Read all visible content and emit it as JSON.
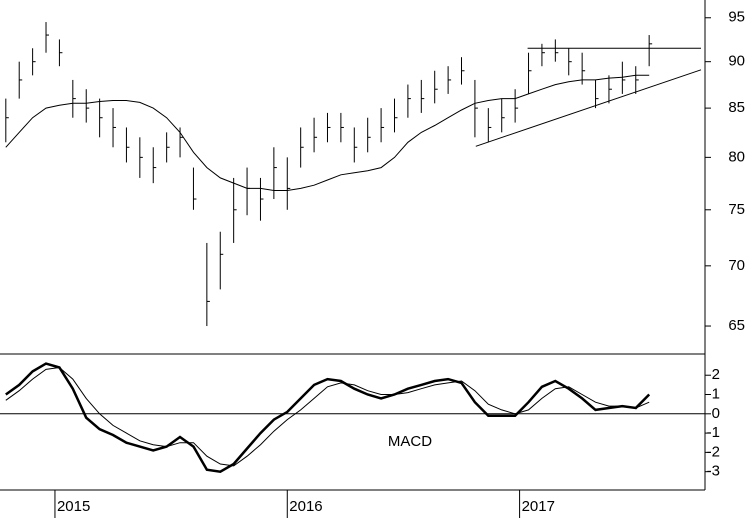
{
  "chart_data": [
    {
      "type": "ohlc",
      "log_scale": true,
      "color": "#000000",
      "xlim": [
        -12.3,
        145.5
      ],
      "ylim": [
        62.8,
        97.1
      ],
      "yticks": [
        65,
        70,
        75,
        80,
        85,
        90,
        95
      ],
      "x": [
        -11,
        -8,
        -5,
        -2,
        1,
        4,
        7,
        10,
        13,
        16,
        19,
        22,
        25,
        28,
        31,
        34,
        37,
        40,
        43,
        46,
        49,
        52,
        55,
        58,
        61,
        64,
        67,
        70,
        73,
        76,
        79,
        82,
        85,
        88,
        91,
        94,
        97,
        100,
        103,
        106,
        109,
        112,
        115,
        118,
        121,
        124,
        127,
        130,
        133
      ],
      "high": [
        86,
        90,
        91.5,
        94.5,
        92.5,
        88,
        87,
        86,
        85,
        83,
        82,
        81,
        82.5,
        83,
        79,
        72,
        73,
        78,
        79,
        78,
        81,
        80,
        83,
        84,
        84.5,
        84.5,
        83,
        84,
        85,
        86,
        87.5,
        88,
        89,
        89.5,
        90.5,
        88,
        85,
        86,
        87,
        91,
        92,
        92.5,
        91.5,
        91,
        88,
        88.5,
        90,
        89.5,
        93
      ],
      "low": [
        81.5,
        86,
        88.5,
        91,
        89.5,
        84,
        83.5,
        82,
        81,
        79.5,
        78,
        77.5,
        79.5,
        80,
        75,
        65,
        68,
        72,
        74.5,
        74,
        76,
        75,
        79,
        80.5,
        81.5,
        81.5,
        79.5,
        80.5,
        81.5,
        82.5,
        84,
        84.5,
        85.5,
        86.5,
        87.5,
        82,
        81.5,
        82.5,
        83.5,
        86.5,
        89.5,
        90,
        88.5,
        87.5,
        85,
        85.5,
        86.5,
        86.5,
        89.5
      ],
      "close": [
        84,
        88,
        90,
        93,
        91,
        86,
        85,
        84,
        83,
        81,
        80,
        79,
        81,
        82,
        76,
        67,
        71,
        75,
        77,
        76,
        79,
        77,
        81,
        82,
        83,
        83,
        81,
        82,
        83,
        84,
        86,
        86,
        87,
        88,
        89,
        85,
        83,
        84,
        85,
        89,
        91,
        91,
        90,
        89,
        86,
        87,
        88,
        88,
        92
      ],
      "series": [
        {
          "color": "#000000",
          "values": [
            81,
            82.5,
            84,
            85,
            85.3,
            85.5,
            85.5,
            85.7,
            85.8,
            85.8,
            85.6,
            85,
            84,
            82.5,
            80.5,
            79,
            78,
            77.5,
            77,
            77,
            76.8,
            76.8,
            77,
            77.3,
            77.8,
            78.3,
            78.5,
            78.7,
            79,
            80,
            81.5,
            82.5,
            83.2,
            84,
            84.8,
            85.5,
            85.8,
            86,
            86,
            86.5,
            87,
            87.5,
            87.8,
            88,
            88,
            88.2,
            88.3,
            88.5,
            88.5
          ]
        }
      ],
      "lines": [
        {
          "x": [
            94.2,
            144.6
          ],
          "values": [
            81.1,
            89.1
          ]
        },
        {
          "x": [
            105.8,
            144.6
          ],
          "values": [
            91.5,
            91.5
          ]
        }
      ]
    },
    {
      "type": "line",
      "annotation": "MACD",
      "xlim": [
        -12.3,
        145.5
      ],
      "ylim": [
        -3.95,
        3.1
      ],
      "yticks": [
        -3,
        -2,
        -1,
        0,
        1,
        2
      ],
      "xticks": [
        {
          "value": 0,
          "label": "2015"
        },
        {
          "value": 52,
          "label": "2016"
        },
        {
          "value": 104,
          "label": "2017"
        }
      ],
      "x": [
        -11,
        -8,
        -5,
        -2,
        1,
        4,
        7,
        10,
        13,
        16,
        19,
        22,
        25,
        28,
        31,
        34,
        37,
        40,
        43,
        46,
        49,
        52,
        55,
        58,
        61,
        64,
        67,
        70,
        73,
        76,
        79,
        82,
        85,
        88,
        91,
        94,
        97,
        100,
        103,
        106,
        109,
        112,
        115,
        118,
        121,
        124,
        127,
        130,
        133
      ],
      "series": [
        {
          "color": "#000000",
          "line_width": 2.5,
          "values": [
            1.0,
            1.5,
            2.2,
            2.6,
            2.4,
            1.3,
            -0.2,
            -0.8,
            -1.1,
            -1.5,
            -1.7,
            -1.9,
            -1.7,
            -1.2,
            -1.7,
            -2.9,
            -3.0,
            -2.6,
            -1.8,
            -1.0,
            -0.3,
            0.1,
            0.8,
            1.5,
            1.8,
            1.7,
            1.3,
            1.0,
            0.8,
            1.0,
            1.3,
            1.5,
            1.7,
            1.8,
            1.6,
            0.6,
            -0.1,
            -0.1,
            -0.1,
            0.6,
            1.4,
            1.7,
            1.3,
            0.8,
            0.2,
            0.3,
            0.4,
            0.3,
            1.0
          ]
        },
        {
          "color": "#000000",
          "line_width": 1,
          "values": [
            0.7,
            1.2,
            1.8,
            2.3,
            2.4,
            1.8,
            0.8,
            0,
            -0.6,
            -1.0,
            -1.4,
            -1.6,
            -1.7,
            -1.5,
            -1.5,
            -2.2,
            -2.6,
            -2.7,
            -2.2,
            -1.6,
            -0.9,
            -0.3,
            0.2,
            0.8,
            1.4,
            1.6,
            1.5,
            1.2,
            1.0,
            1.0,
            1.1,
            1.3,
            1.5,
            1.6,
            1.7,
            1.2,
            0.5,
            0.2,
            0,
            0.2,
            0.8,
            1.3,
            1.4,
            1.0,
            0.6,
            0.4,
            0.4,
            0.3,
            0.6
          ]
        }
      ]
    }
  ]
}
